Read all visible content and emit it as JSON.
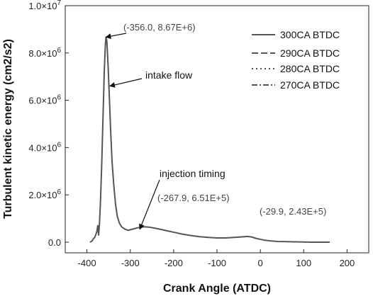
{
  "chart_data": {
    "type": "line",
    "xlabel": "Crank Angle (ATDC)",
    "ylabel": "Turbulent kinetic energy (cm2/s2)",
    "xlim": [
      -450,
      250
    ],
    "ylim": [
      -0.45,
      10.0
    ],
    "y_scale_note": "values in units of 10^6 cm2/s2",
    "x_ticks": [
      {
        "value": -400,
        "label": "-400"
      },
      {
        "value": -300,
        "label": "-300"
      },
      {
        "value": -200,
        "label": "-200"
      },
      {
        "value": -100,
        "label": "-100"
      },
      {
        "value": 0,
        "label": "0"
      },
      {
        "value": 100,
        "label": "100"
      },
      {
        "value": 200,
        "label": "200"
      }
    ],
    "y_ticks": [
      {
        "value": 0,
        "base": "0.0",
        "exp": ""
      },
      {
        "value": 2,
        "base": "2.0",
        "exp": "6"
      },
      {
        "value": 4,
        "base": "4.0",
        "exp": "6"
      },
      {
        "value": 6,
        "base": "6.0",
        "exp": "6"
      },
      {
        "value": 8,
        "base": "8.0",
        "exp": "6"
      },
      {
        "value": 10,
        "base": "1.0",
        "exp": "7"
      }
    ],
    "legend_position": "top-right",
    "series": [
      {
        "name": "300CA BTDC",
        "dash": "solid",
        "color": "#555555",
        "points": [
          [
            -393,
            0.0
          ],
          [
            -388,
            0.05
          ],
          [
            -385,
            0.15
          ],
          [
            -382,
            0.2
          ],
          [
            -380,
            0.3
          ],
          [
            -377,
            0.45
          ],
          [
            -375,
            0.7
          ],
          [
            -373,
            0.3
          ],
          [
            -371,
            0.8
          ],
          [
            -369,
            1.6
          ],
          [
            -366,
            3.2
          ],
          [
            -363,
            5.2
          ],
          [
            -360,
            7.2
          ],
          [
            -357.5,
            8.35
          ],
          [
            -356,
            8.67
          ],
          [
            -354,
            8.5
          ],
          [
            -351,
            7.4
          ],
          [
            -348,
            6.0
          ],
          [
            -345,
            4.6
          ],
          [
            -342,
            3.4
          ],
          [
            -338,
            2.4
          ],
          [
            -334,
            1.6
          ],
          [
            -330,
            1.1
          ],
          [
            -325,
            0.8
          ],
          [
            -320,
            0.65
          ],
          [
            -313,
            0.56
          ],
          [
            -305,
            0.5
          ],
          [
            -295,
            0.55
          ],
          [
            -285,
            0.6
          ],
          [
            -275,
            0.63
          ],
          [
            -267.9,
            0.651
          ],
          [
            -255,
            0.63
          ],
          [
            -240,
            0.58
          ],
          [
            -220,
            0.5
          ],
          [
            -200,
            0.42
          ],
          [
            -180,
            0.34
          ],
          [
            -160,
            0.28
          ],
          [
            -140,
            0.23
          ],
          [
            -120,
            0.2
          ],
          [
            -100,
            0.18
          ],
          [
            -80,
            0.18
          ],
          [
            -60,
            0.2
          ],
          [
            -45,
            0.22
          ],
          [
            -29.9,
            0.243
          ],
          [
            -20,
            0.22
          ],
          [
            -10,
            0.16
          ],
          [
            0,
            0.12
          ],
          [
            10,
            0.08
          ],
          [
            25,
            0.05
          ],
          [
            40,
            0.03
          ],
          [
            60,
            0.02
          ],
          [
            90,
            0.01
          ],
          [
            120,
            0.0
          ],
          [
            160,
            0.0
          ]
        ]
      },
      {
        "name": "290CA BTDC",
        "dash": "long-dash",
        "color": "#555555",
        "points": []
      },
      {
        "name": "280CA BTDC",
        "dash": "dotted",
        "color": "#555555",
        "points": []
      },
      {
        "name": "270CA BTDC",
        "dash": "dash-dot",
        "color": "#555555",
        "points": []
      }
    ],
    "annotations": [
      {
        "id": "peak",
        "text": "(-356.0, 8.67E+6)",
        "x": -356.0,
        "y": 8.67
      },
      {
        "id": "intake",
        "text": "intake flow",
        "x": -347,
        "y": 6.6
      },
      {
        "id": "injection",
        "text": "injection timing",
        "x": -278,
        "y": 0.55
      },
      {
        "id": "inj_coord",
        "text": "(-267.9, 6.51E+5)",
        "x": -267.9,
        "y": 0.651
      },
      {
        "id": "late_coord",
        "text": "(-29.9, 2.43E+5)",
        "x": -29.9,
        "y": 0.243
      }
    ]
  }
}
